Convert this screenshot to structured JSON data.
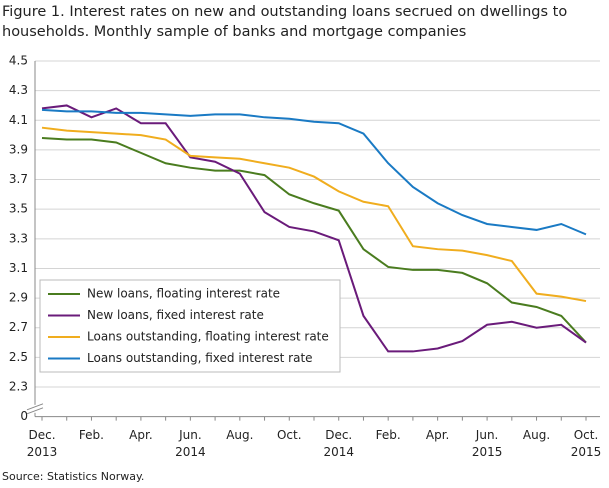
{
  "chart_data": {
    "type": "line",
    "title": "Figure 1. Interest rates on new and outstanding loans secrued on dwellings to households. Monthly sample of banks and mortgage companies",
    "source": "Source: Statistics Norway.",
    "categories": [
      "Dec.",
      null,
      "Feb.",
      null,
      "Apr.",
      null,
      "Jun.",
      null,
      "Aug.",
      null,
      "Oct.",
      null,
      "Dec.",
      null,
      "Feb.",
      null,
      "Apr.",
      null,
      "Jun.",
      null,
      "Aug.",
      null,
      "Oct."
    ],
    "category_years": [
      "2013",
      null,
      null,
      null,
      null,
      null,
      "2014",
      null,
      null,
      null,
      null,
      null,
      "2014",
      null,
      null,
      null,
      null,
      null,
      "2015",
      null,
      null,
      null,
      "2015"
    ],
    "ylim": [
      0,
      4.5
    ],
    "yticks": [
      0,
      2.3,
      2.5,
      2.7,
      2.9,
      3.1,
      3.3,
      3.5,
      3.7,
      3.9,
      4.1,
      4.3,
      4.5
    ],
    "axis_break": true,
    "grid": true,
    "series": [
      {
        "name": "New loans, floating interest rate",
        "color": "#4a7c1f",
        "values": [
          3.98,
          3.97,
          3.97,
          3.95,
          3.88,
          3.81,
          3.78,
          3.76,
          3.76,
          3.73,
          3.6,
          3.54,
          3.49,
          3.23,
          3.11,
          3.09,
          3.09,
          3.07,
          3.0,
          2.87,
          2.84,
          2.78,
          2.6
        ]
      },
      {
        "name": "New loans, fixed interest rate",
        "color": "#6a1b7a",
        "values": [
          4.18,
          4.2,
          4.12,
          4.18,
          4.08,
          4.08,
          3.85,
          3.82,
          3.74,
          3.48,
          3.38,
          3.35,
          3.29,
          2.78,
          2.54,
          2.54,
          2.56,
          2.61,
          2.72,
          2.74,
          2.7,
          2.72,
          2.6
        ]
      },
      {
        "name": "Loans outstanding, floating interest rate",
        "color": "#f0ad1e",
        "values": [
          4.05,
          4.03,
          4.02,
          4.01,
          4.0,
          3.97,
          3.86,
          3.85,
          3.84,
          3.81,
          3.78,
          3.72,
          3.62,
          3.55,
          3.52,
          3.25,
          3.23,
          3.22,
          3.19,
          3.15,
          2.93,
          2.91,
          2.88
        ]
      },
      {
        "name": "Loans outstanding, fixed interest rate",
        "color": "#1a7ac4",
        "values": [
          4.17,
          4.16,
          4.16,
          4.15,
          4.15,
          4.14,
          4.13,
          4.14,
          4.14,
          4.12,
          4.11,
          4.09,
          4.08,
          4.01,
          3.81,
          3.65,
          3.54,
          3.46,
          3.4,
          3.38,
          3.36,
          3.4,
          3.33
        ]
      }
    ]
  }
}
